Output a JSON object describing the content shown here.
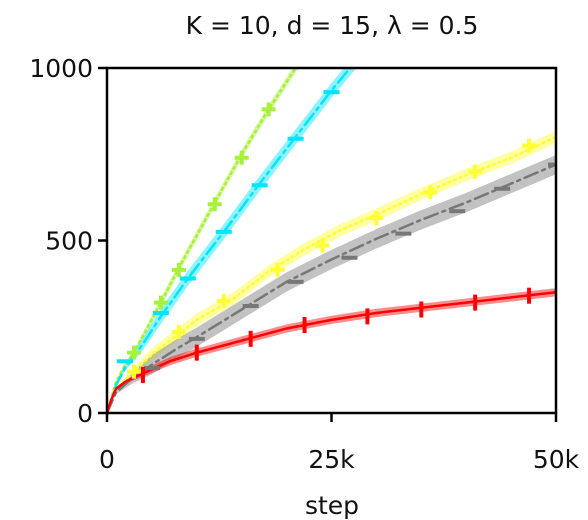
{
  "chart_data": {
    "type": "line",
    "title": "K = 10, d = 15, λ = 0.5",
    "xlabel": "step",
    "ylabel": "",
    "xlim": [
      0,
      50000
    ],
    "ylim": [
      0,
      1000
    ],
    "xticks": [
      0,
      25000,
      50000
    ],
    "xtick_labels": [
      "0",
      "25k",
      "50k"
    ],
    "yticks": [
      0,
      500,
      1000
    ],
    "ytick_labels": [
      "0",
      "500",
      "1000"
    ],
    "grid": false,
    "legend": "none",
    "series": [
      {
        "color": "#a8f03a",
        "linestyle": "dotted",
        "marker": "plus",
        "x": [
          0,
          1000,
          2000,
          3000,
          6000,
          8000,
          12000,
          15000,
          18000,
          20000,
          22000
        ],
        "y": [
          0,
          90,
          140,
          175,
          320,
          420,
          610,
          750,
          880,
          960,
          1040
        ],
        "band": 14,
        "marker_points": [
          [
            3000,
            175
          ],
          [
            6000,
            320
          ],
          [
            8000,
            415
          ],
          [
            12000,
            605
          ],
          [
            15000,
            740
          ],
          [
            18000,
            880
          ]
        ]
      },
      {
        "color": "#00e5ff",
        "linestyle": "dashdot",
        "marker": "dash",
        "x": [
          0,
          1000,
          2000,
          4000,
          6000,
          9000,
          13000,
          17000,
          21000,
          25000,
          29000
        ],
        "y": [
          0,
          80,
          130,
          200,
          280,
          390,
          525,
          665,
          800,
          935,
          1060
        ],
        "band": 22,
        "marker_points": [
          [
            2000,
            150
          ],
          [
            6000,
            290
          ],
          [
            9000,
            390
          ],
          [
            13000,
            525
          ],
          [
            17000,
            660
          ],
          [
            21000,
            795
          ],
          [
            25000,
            930
          ]
        ]
      },
      {
        "color": "#ffff33",
        "linestyle": "dotted",
        "marker": "plus",
        "x": [
          0,
          1000,
          3000,
          5000,
          8000,
          10000,
          14000,
          18000,
          22000,
          26000,
          30000,
          35000,
          40000,
          45000,
          50000
        ],
        "y": [
          0,
          70,
          120,
          170,
          230,
          270,
          330,
          410,
          475,
          530,
          575,
          635,
          690,
          740,
          800
        ],
        "band": 18,
        "marker_points": [
          [
            3000,
            120
          ],
          [
            8000,
            235
          ],
          [
            13000,
            325
          ],
          [
            19000,
            415
          ],
          [
            24000,
            485
          ],
          [
            30000,
            565
          ],
          [
            36000,
            640
          ],
          [
            41000,
            700
          ],
          [
            47000,
            775
          ]
        ]
      },
      {
        "color": "#777777",
        "linestyle": "dashdot",
        "marker": "dash",
        "x": [
          0,
          1000,
          3000,
          5000,
          8000,
          10000,
          15000,
          20000,
          25000,
          30000,
          35000,
          40000,
          45000,
          50000
        ],
        "y": [
          0,
          60,
          105,
          140,
          190,
          220,
          300,
          380,
          445,
          505,
          560,
          610,
          665,
          720
        ],
        "band": 28,
        "marker_points": [
          [
            5000,
            130
          ],
          [
            10000,
            215
          ],
          [
            16000,
            310
          ],
          [
            21000,
            380
          ],
          [
            27000,
            450
          ],
          [
            33000,
            520
          ],
          [
            39000,
            585
          ],
          [
            44000,
            650
          ],
          [
            50000,
            720
          ]
        ]
      },
      {
        "color": "#ff0000",
        "linestyle": "solid",
        "marker": "bar",
        "x": [
          0,
          500,
          1000,
          2000,
          4000,
          7000,
          10000,
          15000,
          20000,
          25000,
          30000,
          35000,
          40000,
          45000,
          50000
        ],
        "y": [
          0,
          40,
          70,
          90,
          115,
          150,
          175,
          210,
          245,
          270,
          290,
          305,
          320,
          335,
          350
        ],
        "band": 12,
        "marker_points": [
          [
            4000,
            110
          ],
          [
            10000,
            175
          ],
          [
            16000,
            215
          ],
          [
            22000,
            255
          ],
          [
            29000,
            280
          ],
          [
            35000,
            300
          ],
          [
            41000,
            320
          ],
          [
            47000,
            340
          ]
        ]
      }
    ]
  }
}
